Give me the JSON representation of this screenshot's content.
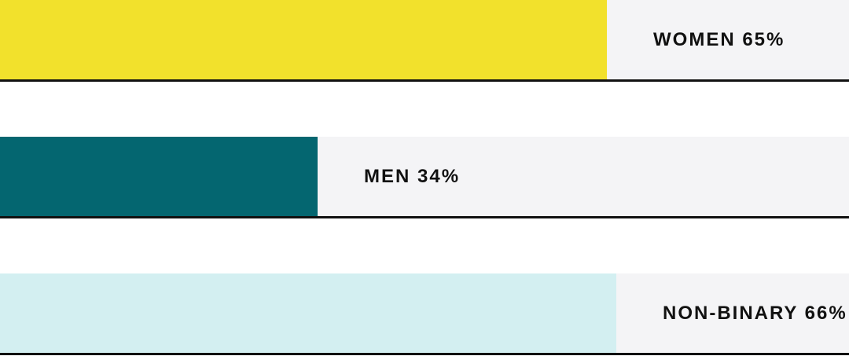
{
  "chart_data": {
    "type": "bar",
    "orientation": "horizontal",
    "unit": "%",
    "xlim": [
      0,
      100
    ],
    "grid": false,
    "legend": "none",
    "categories": [
      "WOMEN",
      "MEN",
      "NON-BINARY"
    ],
    "values": [
      65,
      34,
      66
    ],
    "labels": [
      "WOMEN 65%",
      "MEN 34%",
      "NON-BINARY 66%"
    ],
    "colors": [
      "#f2e12c",
      "#046670",
      "#d3eff1"
    ],
    "track_color": "#f4f4f6",
    "baseline_color": "#111111"
  }
}
